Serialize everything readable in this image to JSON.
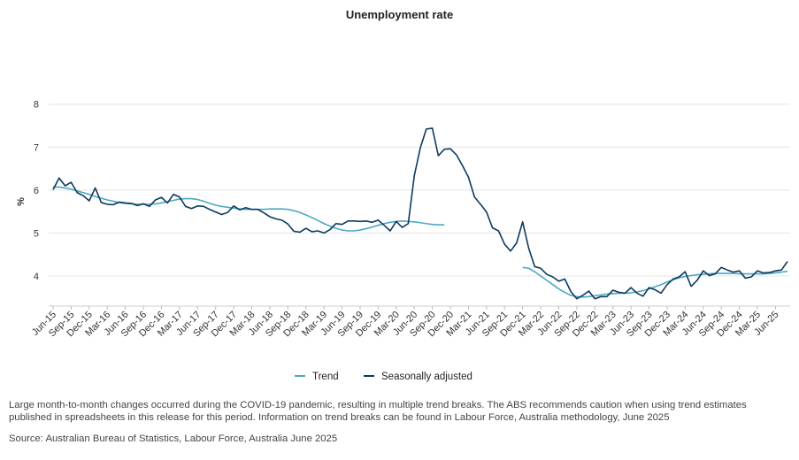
{
  "chart_data": {
    "type": "line",
    "title": "Unemployment rate",
    "ylabel": "%",
    "ylim": [
      3.3,
      8.2
    ],
    "yticks": [
      4,
      5,
      6,
      7,
      8
    ],
    "xtick_labels": [
      "Jun-15",
      "Sep-15",
      "Dec-15",
      "Mar-16",
      "Jun-16",
      "Sep-16",
      "Dec-16",
      "Mar-17",
      "Jun-17",
      "Sep-17",
      "Dec-17",
      "Mar-18",
      "Jun-18",
      "Sep-18",
      "Dec-18",
      "Mar-19",
      "Jun-19",
      "Sep-19",
      "Dec-19",
      "Mar-20",
      "Jun-20",
      "Sep-20",
      "Dec-20",
      "Mar-21",
      "Jun-21",
      "Sep-21",
      "Dec-21",
      "Mar-22",
      "Jun-22",
      "Sep-22",
      "Dec-22",
      "Mar-23",
      "Jun-23",
      "Sep-23",
      "Dec-23",
      "Mar-24",
      "Jun-24",
      "Sep-24",
      "Dec-24",
      "Mar-25",
      "Jun-25"
    ],
    "grid": "horizontal",
    "legend_position": "bottom-center",
    "colors": {
      "trend": "#4ba8c4",
      "seasonally_adjusted": "#0d3a5c"
    },
    "series": [
      {
        "name": "Trend",
        "segments": [
          [
            6.07,
            6.07,
            6.05,
            6.02,
            5.98,
            5.94,
            5.9,
            5.85,
            5.81,
            5.77,
            5.74,
            5.71,
            5.69,
            5.68,
            5.67,
            5.67,
            5.67,
            5.68,
            5.7,
            5.73,
            5.76,
            5.79,
            5.8,
            5.8,
            5.78,
            5.74,
            5.69,
            5.65,
            5.62,
            5.6,
            5.58,
            5.56,
            5.55,
            5.55,
            5.55,
            5.55,
            5.56,
            5.56,
            5.56,
            5.55,
            5.52,
            5.48,
            5.42,
            5.36,
            5.29,
            5.22,
            5.16,
            5.11,
            5.07,
            5.05,
            5.05,
            5.07,
            5.1,
            5.14,
            5.18,
            5.22,
            5.25,
            5.27,
            5.28,
            5.27,
            5.26,
            5.24,
            5.22,
            5.2,
            5.19,
            5.19
          ],
          [
            4.2,
            4.18,
            4.1,
            4.0,
            3.9,
            3.8,
            3.7,
            3.62,
            3.55,
            3.52,
            3.51,
            3.52,
            3.54,
            3.56,
            3.58,
            3.59,
            3.6,
            3.6,
            3.61,
            3.63,
            3.66,
            3.7,
            3.75,
            3.8,
            3.86,
            3.91,
            3.96,
            3.99,
            4.01,
            4.03,
            4.04,
            4.05,
            4.06,
            4.06,
            4.06,
            4.06,
            4.05,
            4.05,
            4.05,
            4.05,
            4.05,
            4.06,
            4.07,
            4.09,
            4.11
          ]
        ],
        "segment_start_index": [
          0,
          78
        ]
      },
      {
        "name": "Seasonally adjusted",
        "values": [
          6.01,
          6.28,
          6.1,
          6.18,
          5.94,
          5.87,
          5.75,
          6.05,
          5.71,
          5.67,
          5.66,
          5.72,
          5.7,
          5.69,
          5.64,
          5.68,
          5.62,
          5.77,
          5.83,
          5.7,
          5.9,
          5.84,
          5.62,
          5.57,
          5.63,
          5.62,
          5.55,
          5.49,
          5.43,
          5.48,
          5.63,
          5.54,
          5.59,
          5.55,
          5.55,
          5.47,
          5.38,
          5.33,
          5.3,
          5.21,
          5.04,
          5.02,
          5.11,
          5.03,
          5.05,
          5.0,
          5.08,
          5.22,
          5.2,
          5.28,
          5.28,
          5.27,
          5.28,
          5.25,
          5.3,
          5.18,
          5.05,
          5.27,
          5.13,
          5.22,
          6.33,
          6.98,
          7.42,
          7.44,
          6.8,
          6.95,
          6.96,
          6.82,
          6.57,
          6.3,
          5.84,
          5.67,
          5.49,
          5.12,
          5.05,
          4.74,
          4.58,
          4.77,
          5.26,
          4.65,
          4.22,
          4.18,
          4.04,
          3.98,
          3.88,
          3.93,
          3.64,
          3.47,
          3.55,
          3.65,
          3.47,
          3.52,
          3.52,
          3.67,
          3.62,
          3.6,
          3.73,
          3.6,
          3.53,
          3.73,
          3.68,
          3.6,
          3.8,
          3.93,
          3.98,
          4.1,
          3.76,
          3.9,
          4.12,
          4.01,
          4.05,
          4.2,
          4.14,
          4.09,
          4.12,
          3.95,
          3.98,
          4.12,
          4.07,
          4.08,
          4.12,
          4.14,
          4.34
        ]
      }
    ]
  },
  "legend": {
    "trend_label": "Trend",
    "sa_label": "Seasonally adjusted"
  },
  "footnote": "Large month-to-month changes occurred during the COVID-19 pandemic, resulting in multiple trend breaks. The ABS recommends caution when using trend estimates published in spreadsheets in this release for this period. Information on trend breaks can be found in Labour Force, Australia methodology, June 2025",
  "source": "Source: Australian Bureau of Statistics, Labour Force, Australia June 2025"
}
